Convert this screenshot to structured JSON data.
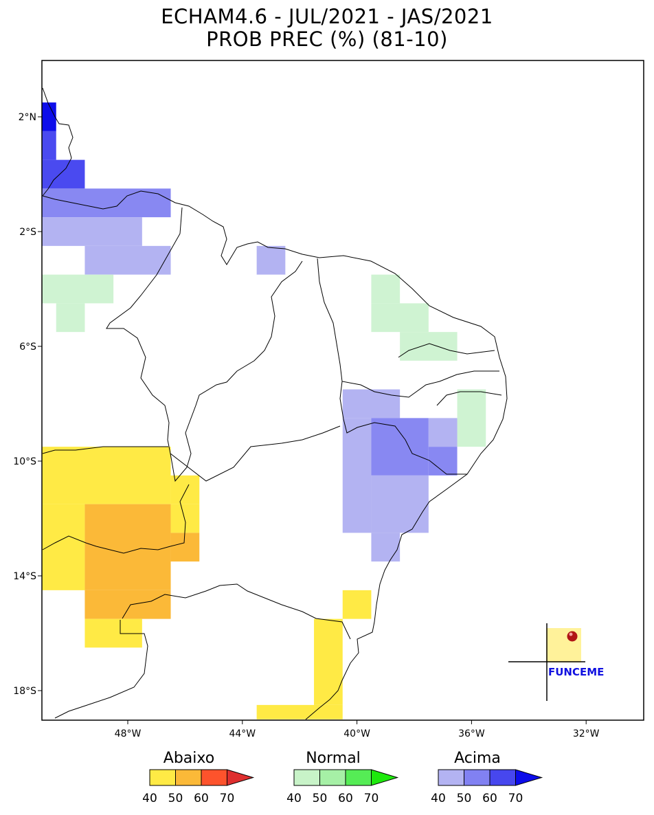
{
  "title": {
    "line1": "ECHAM4.6 - JUL/2021 - JAS/2021",
    "line2": "PROB PREC (%) (81-10)"
  },
  "map": {
    "lon_range": [
      -51,
      -30
    ],
    "lat_range": [
      -19,
      4
    ],
    "grid_step_deg": 1,
    "x_ticks": [
      {
        "lon": -48,
        "label": "48°W"
      },
      {
        "lon": -44,
        "label": "44°W"
      },
      {
        "lon": -40,
        "label": "40°W"
      },
      {
        "lon": -36,
        "label": "36°W"
      },
      {
        "lon": -32,
        "label": "32°W"
      }
    ],
    "y_ticks": [
      {
        "lat": 2,
        "label": "2°N"
      },
      {
        "lat": -2,
        "label": "2°S"
      },
      {
        "lat": -6,
        "label": "6°S"
      },
      {
        "lat": -10,
        "label": "10°S"
      },
      {
        "lat": -14,
        "label": "14°S"
      },
      {
        "lat": -18,
        "label": "18°S"
      }
    ],
    "cells": [
      {
        "lon": -51,
        "lat": 2.5,
        "w": 0.5,
        "h": 1,
        "c": "A70"
      },
      {
        "lon": -51,
        "lat": 1.5,
        "w": 0.5,
        "h": 1,
        "c": "A60"
      },
      {
        "lon": -51,
        "lat": 0.5,
        "w": 1.5,
        "h": 1,
        "c": "A60"
      },
      {
        "lon": -51,
        "lat": -0.5,
        "w": 4.5,
        "h": 1,
        "c": "A50"
      },
      {
        "lon": -51,
        "lat": -1.5,
        "w": 3.5,
        "h": 1,
        "c": "A40"
      },
      {
        "lon": -49.5,
        "lat": -2.5,
        "w": 3,
        "h": 1,
        "c": "A40"
      },
      {
        "lon": -43.5,
        "lat": -2.5,
        "w": 1,
        "h": 1,
        "c": "A40"
      },
      {
        "lon": -51,
        "lat": -3.5,
        "w": 2.5,
        "h": 1,
        "c": "N40"
      },
      {
        "lon": -50.5,
        "lat": -4.5,
        "w": 1,
        "h": 1,
        "c": "N40"
      },
      {
        "lon": -39.5,
        "lat": -3.5,
        "w": 1,
        "h": 1,
        "c": "N40"
      },
      {
        "lon": -39.5,
        "lat": -4.5,
        "w": 2,
        "h": 1,
        "c": "N40"
      },
      {
        "lon": -38.5,
        "lat": -5.5,
        "w": 2,
        "h": 1,
        "c": "N40"
      },
      {
        "lon": -36.5,
        "lat": -7.5,
        "w": 1,
        "h": 2,
        "c": "N40"
      },
      {
        "lon": -40.5,
        "lat": -7.5,
        "w": 2,
        "h": 1,
        "c": "A40"
      },
      {
        "lon": -40.5,
        "lat": -8.5,
        "w": 1,
        "h": 4,
        "c": "A40"
      },
      {
        "lon": -39.5,
        "lat": -8.5,
        "w": 2,
        "h": 2,
        "c": "A50"
      },
      {
        "lon": -37.5,
        "lat": -8.5,
        "w": 1,
        "h": 1,
        "c": "A40"
      },
      {
        "lon": -37.5,
        "lat": -9.5,
        "w": 1,
        "h": 1,
        "c": "A50"
      },
      {
        "lon": -39.5,
        "lat": -10.5,
        "w": 2,
        "h": 2,
        "c": "A40"
      },
      {
        "lon": -39.5,
        "lat": -12.5,
        "w": 1,
        "h": 1,
        "c": "A40"
      },
      {
        "lon": -51,
        "lat": -9.5,
        "w": 4.5,
        "h": 2,
        "c": "B40"
      },
      {
        "lon": -46.5,
        "lat": -10.5,
        "w": 1,
        "h": 1,
        "c": "B40"
      },
      {
        "lon": -51,
        "lat": -11.5,
        "w": 1.5,
        "h": 3,
        "c": "B40"
      },
      {
        "lon": -49.5,
        "lat": -11.5,
        "w": 3,
        "h": 3,
        "c": "B50"
      },
      {
        "lon": -46.5,
        "lat": -11.5,
        "w": 1,
        "h": 1,
        "c": "B40"
      },
      {
        "lon": -46.5,
        "lat": -12.5,
        "w": 1,
        "h": 1,
        "c": "B50"
      },
      {
        "lon": -49.5,
        "lat": -14.5,
        "w": 3,
        "h": 1,
        "c": "B50"
      },
      {
        "lon": -49.5,
        "lat": -15.5,
        "w": 2,
        "h": 1,
        "c": "B40"
      },
      {
        "lon": -40.5,
        "lat": -14.5,
        "w": 1,
        "h": 1,
        "c": "B40"
      },
      {
        "lon": -41.5,
        "lat": -15.5,
        "w": 1,
        "h": 3,
        "c": "B40"
      },
      {
        "lon": -43.5,
        "lat": -18.5,
        "w": 3,
        "h": 0.5,
        "c": "B40"
      }
    ]
  },
  "legend": {
    "below": {
      "title": "Abaixo",
      "colors": [
        "#ffea45",
        "#fbb938",
        "#fd532c",
        "#de2f2f"
      ],
      "labels": [
        "40",
        "50",
        "60",
        "70"
      ]
    },
    "normal": {
      "title": "Normal",
      "colors": [
        "#c8f3c8",
        "#a6f0a6",
        "#55ec55",
        "#1ee90d"
      ],
      "labels": [
        "40",
        "50",
        "60",
        "70"
      ]
    },
    "above": {
      "title": "Acima",
      "colors": [
        "#b3b3f2",
        "#8181f2",
        "#4747ee",
        "#0c0cea"
      ],
      "labels": [
        "40",
        "50",
        "60",
        "70"
      ]
    }
  },
  "cell_colors": {
    "B40": "#ffea45",
    "B50": "#fbb938",
    "N40": "#cff3d2",
    "A40": "#b3b3f2",
    "A50": "#8888f2",
    "A60": "#4a4af0",
    "A70": "#0e0eea"
  },
  "logo": {
    "text": "FUNCEME",
    "color": "#1010e0"
  }
}
